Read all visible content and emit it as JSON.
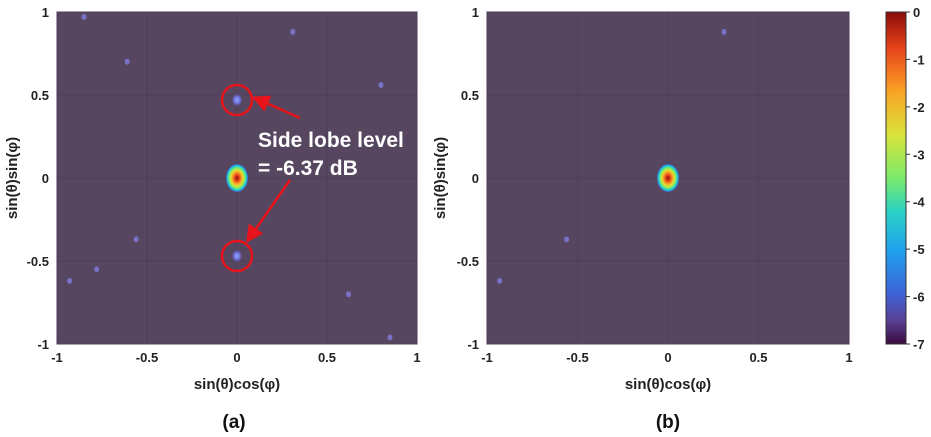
{
  "colors": {
    "background_level": "#57465f",
    "annotation_marker": "#e8141c",
    "grid": "#4e3f57",
    "colormap": [
      "#3a0a3e",
      "#5a3f93",
      "#3d62d6",
      "#1fa0ee",
      "#2bd2c4",
      "#7bea6a",
      "#d9e33a",
      "#f9a324",
      "#e8441a",
      "#8a0b0b"
    ]
  },
  "chart_data": [
    {
      "type": "heatmap",
      "panel_label": "(a)",
      "xlabel": "sin(θ)cos(φ)",
      "ylabel": "sin(θ)sin(φ)",
      "xlim": [
        -1,
        1
      ],
      "ylim": [
        -1,
        1
      ],
      "xticks": [
        "-1",
        "-0.5",
        "0",
        "0.5",
        "1"
      ],
      "yticks": [
        "-1",
        "-0.5",
        "0",
        "0.5",
        "1"
      ],
      "grid": true,
      "main_lobe": {
        "x": 0.0,
        "y": 0.0,
        "peak_db": 0
      },
      "side_lobes": [
        {
          "x": 0.0,
          "y": 0.47,
          "level_db": -6.37
        },
        {
          "x": 0.0,
          "y": -0.47,
          "level_db": -6.37
        }
      ],
      "minor_lobes": [
        {
          "x": -0.85,
          "y": 0.97
        },
        {
          "x": -0.61,
          "y": 0.7
        },
        {
          "x": 0.8,
          "y": 0.56
        },
        {
          "x": 0.31,
          "y": 0.88
        },
        {
          "x": -0.78,
          "y": -0.55
        },
        {
          "x": 0.62,
          "y": -0.7
        },
        {
          "x": 0.85,
          "y": -0.96
        },
        {
          "x": -0.56,
          "y": -0.37
        },
        {
          "x": -0.93,
          "y": -0.62
        }
      ],
      "annotation": {
        "line1": "Side lobe level",
        "line2": "= -6.37 dB"
      }
    },
    {
      "type": "heatmap",
      "panel_label": "(b)",
      "xlabel": "sin(θ)cos(φ)",
      "ylabel": "sin(θ)sin(φ)",
      "xlim": [
        -1,
        1
      ],
      "ylim": [
        -1,
        1
      ],
      "xticks": [
        "-1",
        "-0.5",
        "0",
        "0.5",
        "1"
      ],
      "yticks": [
        "-1",
        "-0.5",
        "0",
        "0.5",
        "1"
      ],
      "grid": true,
      "main_lobe": {
        "x": 0.0,
        "y": 0.0,
        "peak_db": 0
      },
      "minor_lobes": [
        {
          "x": 0.31,
          "y": 0.88
        },
        {
          "x": -0.56,
          "y": -0.37
        },
        {
          "x": -0.93,
          "y": -0.62
        }
      ]
    }
  ],
  "colorbar": {
    "ticks": [
      "0",
      "-1",
      "-2",
      "-3",
      "-4",
      "-5",
      "-6",
      "-7"
    ],
    "range_db": [
      -7,
      0
    ]
  }
}
